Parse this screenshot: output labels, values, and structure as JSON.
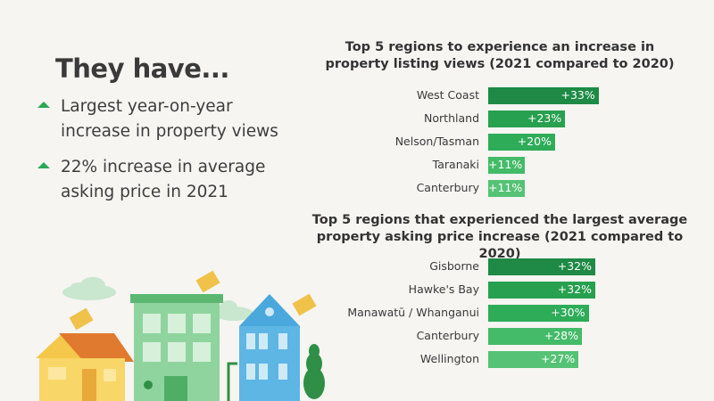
{
  "headline": "They have...",
  "bullets": [
    {
      "line1": "Largest year-on-year",
      "line2": "increase in property views"
    },
    {
      "line1": "22% increase in average",
      "line2": "asking price in 2021"
    }
  ],
  "colors": {
    "accent_green": "#2aa855",
    "bar_shades": [
      "#1e8a45",
      "#27a04f",
      "#2eac58",
      "#44bb68",
      "#55c275"
    ]
  },
  "chart_data": [
    {
      "type": "bar",
      "orientation": "horizontal",
      "title_line1": "Top 5 regions to experience an increase in",
      "title_line2": "property listing views (2021 compared to 2020)",
      "categories": [
        "West Coast",
        "Northland",
        "Nelson/Tasman",
        "Taranaki",
        "Canterbury"
      ],
      "values": [
        33,
        23,
        20,
        11,
        11
      ],
      "labels": [
        "+33%",
        "+23%",
        "+20%",
        "+11%",
        "+11%"
      ]
    },
    {
      "type": "bar",
      "orientation": "horizontal",
      "title_line1": "Top 5 regions that experienced the largest average",
      "title_line2": "property asking price increase (2021 compared to 2020)",
      "categories": [
        "Gisborne",
        "Hawke's Bay",
        "Manawatū / Whanganui",
        "Canterbury",
        "Wellington"
      ],
      "values": [
        32,
        32,
        30,
        28,
        27
      ],
      "labels": [
        "+32%",
        "+32%",
        "+30%",
        "+28%",
        "+27%"
      ]
    }
  ]
}
